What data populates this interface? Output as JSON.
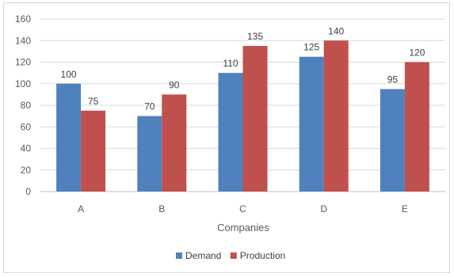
{
  "chart_data": {
    "type": "bar",
    "categories": [
      "A",
      "B",
      "C",
      "D",
      "E"
    ],
    "series": [
      {
        "name": "Demand",
        "values": [
          100,
          70,
          110,
          125,
          95
        ],
        "color": "#4f81bd"
      },
      {
        "name": "Production",
        "values": [
          75,
          90,
          135,
          140,
          120
        ],
        "color": "#c0504d"
      }
    ],
    "xlabel": "Companies",
    "ylabel": "",
    "ylim": [
      0,
      160
    ],
    "yticks": [
      0,
      20,
      40,
      60,
      80,
      100,
      120,
      140,
      160
    ],
    "grid": true,
    "legend_position": "bottom"
  }
}
